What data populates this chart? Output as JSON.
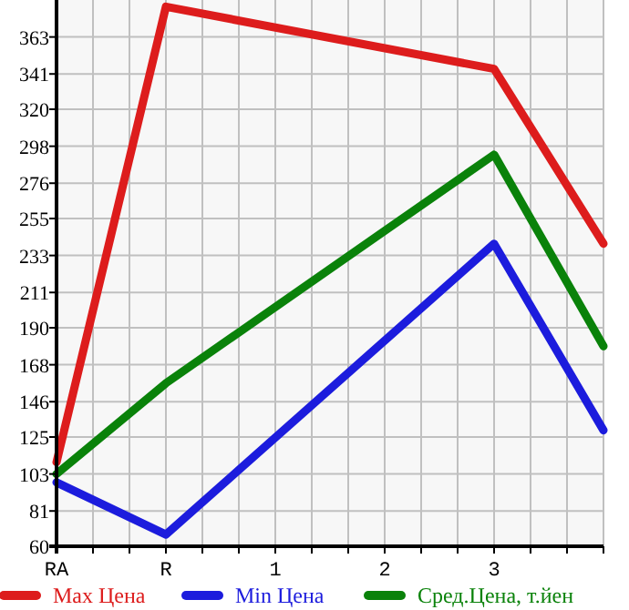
{
  "chart_data": {
    "type": "line",
    "categories": [
      "RA",
      "R",
      "1",
      "2",
      "3",
      null
    ],
    "series": [
      {
        "name": "Max Цена",
        "color": "#dd1c1c",
        "values": [
          110,
          381,
          null,
          null,
          344,
          240
        ]
      },
      {
        "name": "Min Цена",
        "color": "#1c1cdd",
        "values": [
          98,
          67,
          null,
          null,
          240,
          129
        ]
      },
      {
        "name": "Сред.Цена, т.йен",
        "color": "#0a820a",
        "values": [
          103,
          157,
          null,
          null,
          293,
          179
        ]
      }
    ],
    "ylim": [
      60,
      385
    ],
    "yticks": [
      60,
      81,
      103,
      125,
      146,
      168,
      190,
      211,
      233,
      255,
      276,
      298,
      320,
      341,
      363
    ],
    "grid": true,
    "legend": "bottom",
    "marker": "none",
    "line_style": "solid"
  }
}
